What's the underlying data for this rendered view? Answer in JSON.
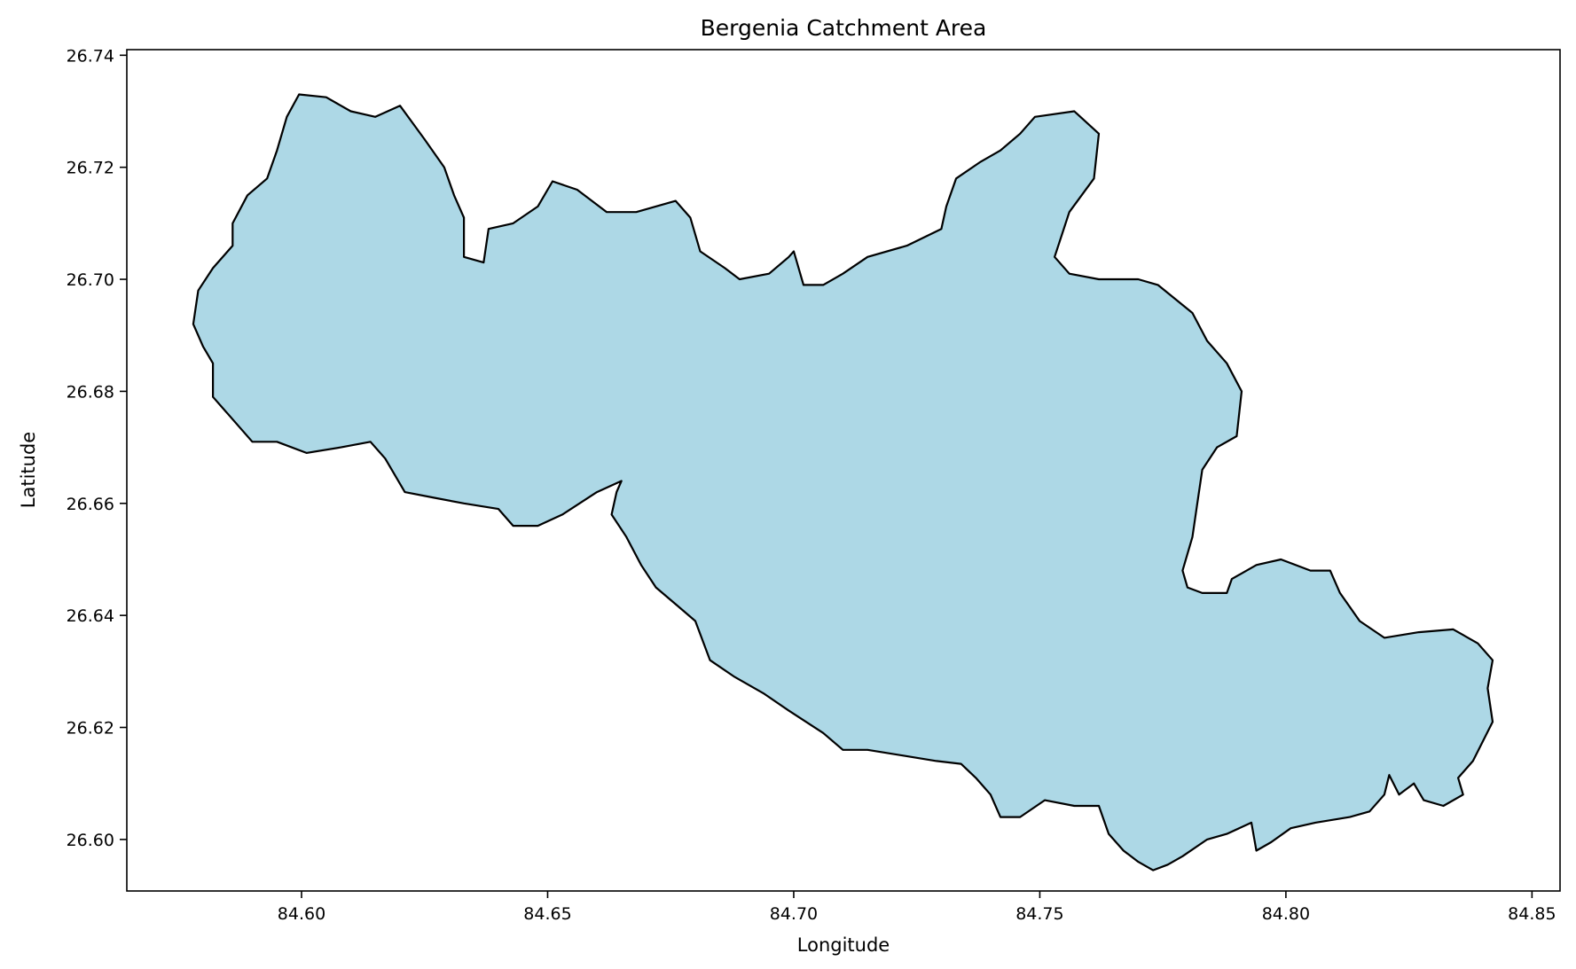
{
  "chart_data": {
    "type": "map",
    "title": "Bergenia Catchment Area",
    "xlabel": "Longitude",
    "ylabel": "Latitude",
    "xlim": [
      84.5645,
      84.8557
    ],
    "ylim": [
      26.5908,
      26.741
    ],
    "xticks": [
      84.6,
      84.65,
      84.7,
      84.75,
      84.8,
      84.85
    ],
    "yticks": [
      26.6,
      26.62,
      26.64,
      26.66,
      26.68,
      26.7,
      26.72,
      26.74
    ],
    "xtick_labels": [
      "84.60",
      "84.65",
      "84.70",
      "84.75",
      "84.80",
      "84.85"
    ],
    "ytick_labels": [
      "26.60",
      "26.62",
      "26.64",
      "26.66",
      "26.68",
      "26.70",
      "26.72",
      "26.74"
    ],
    "grid": false,
    "fill_color": "#add8e6",
    "edge_color": "#000000",
    "boundary": [
      [
        84.578,
        26.692
      ],
      [
        84.579,
        26.698
      ],
      [
        84.582,
        26.702
      ],
      [
        84.586,
        26.706
      ],
      [
        84.586,
        26.71
      ],
      [
        84.589,
        26.715
      ],
      [
        84.593,
        26.718
      ],
      [
        84.595,
        26.723
      ],
      [
        84.597,
        26.729
      ],
      [
        84.5995,
        26.733
      ],
      [
        84.605,
        26.7325
      ],
      [
        84.61,
        26.73
      ],
      [
        84.615,
        26.729
      ],
      [
        84.62,
        26.731
      ],
      [
        84.625,
        26.725
      ],
      [
        84.629,
        26.72
      ],
      [
        84.631,
        26.715
      ],
      [
        84.633,
        26.711
      ],
      [
        84.633,
        26.704
      ],
      [
        84.637,
        26.703
      ],
      [
        84.638,
        26.709
      ],
      [
        84.643,
        26.71
      ],
      [
        84.648,
        26.713
      ],
      [
        84.651,
        26.7175
      ],
      [
        84.656,
        26.716
      ],
      [
        84.662,
        26.712
      ],
      [
        84.668,
        26.712
      ],
      [
        84.676,
        26.714
      ],
      [
        84.679,
        26.711
      ],
      [
        84.681,
        26.705
      ],
      [
        84.686,
        26.702
      ],
      [
        84.689,
        26.7
      ],
      [
        84.695,
        26.701
      ],
      [
        84.699,
        26.704
      ],
      [
        84.7,
        26.705
      ],
      [
        84.702,
        26.699
      ],
      [
        84.706,
        26.699
      ],
      [
        84.71,
        26.701
      ],
      [
        84.715,
        26.704
      ],
      [
        84.723,
        26.706
      ],
      [
        84.73,
        26.709
      ],
      [
        84.731,
        26.713
      ],
      [
        84.733,
        26.718
      ],
      [
        84.738,
        26.721
      ],
      [
        84.742,
        26.723
      ],
      [
        84.746,
        26.726
      ],
      [
        84.749,
        26.729
      ],
      [
        84.757,
        26.73
      ],
      [
        84.762,
        26.726
      ],
      [
        84.761,
        26.718
      ],
      [
        84.756,
        26.712
      ],
      [
        84.753,
        26.704
      ],
      [
        84.756,
        26.701
      ],
      [
        84.762,
        26.7
      ],
      [
        84.77,
        26.7
      ],
      [
        84.774,
        26.699
      ],
      [
        84.781,
        26.694
      ],
      [
        84.784,
        26.689
      ],
      [
        84.788,
        26.685
      ],
      [
        84.791,
        26.68
      ],
      [
        84.79,
        26.672
      ],
      [
        84.786,
        26.67
      ],
      [
        84.783,
        26.666
      ],
      [
        84.782,
        26.66
      ],
      [
        84.781,
        26.654
      ],
      [
        84.779,
        26.648
      ],
      [
        84.78,
        26.645
      ],
      [
        84.783,
        26.644
      ],
      [
        84.788,
        26.644
      ],
      [
        84.789,
        26.6465
      ],
      [
        84.794,
        26.649
      ],
      [
        84.799,
        26.65
      ],
      [
        84.805,
        26.648
      ],
      [
        84.809,
        26.648
      ],
      [
        84.811,
        26.644
      ],
      [
        84.815,
        26.639
      ],
      [
        84.82,
        26.636
      ],
      [
        84.827,
        26.637
      ],
      [
        84.834,
        26.6375
      ],
      [
        84.839,
        26.635
      ],
      [
        84.842,
        26.632
      ],
      [
        84.841,
        26.627
      ],
      [
        84.842,
        26.621
      ],
      [
        84.838,
        26.614
      ],
      [
        84.835,
        26.611
      ],
      [
        84.836,
        26.608
      ],
      [
        84.832,
        26.606
      ],
      [
        84.828,
        26.607
      ],
      [
        84.826,
        26.61
      ],
      [
        84.823,
        26.608
      ],
      [
        84.821,
        26.6115
      ],
      [
        84.82,
        26.608
      ],
      [
        84.817,
        26.605
      ],
      [
        84.813,
        26.604
      ],
      [
        84.806,
        26.603
      ],
      [
        84.801,
        26.602
      ],
      [
        84.797,
        26.5995
      ],
      [
        84.794,
        26.598
      ],
      [
        84.793,
        26.603
      ],
      [
        84.788,
        26.601
      ],
      [
        84.784,
        26.6
      ],
      [
        84.779,
        26.597
      ],
      [
        84.776,
        26.5955
      ],
      [
        84.773,
        26.5945
      ],
      [
        84.77,
        26.596
      ],
      [
        84.767,
        26.598
      ],
      [
        84.764,
        26.601
      ],
      [
        84.762,
        26.606
      ],
      [
        84.757,
        26.606
      ],
      [
        84.751,
        26.607
      ],
      [
        84.746,
        26.604
      ],
      [
        84.742,
        26.604
      ],
      [
        84.74,
        26.608
      ],
      [
        84.737,
        26.611
      ],
      [
        84.734,
        26.6135
      ],
      [
        84.729,
        26.614
      ],
      [
        84.722,
        26.615
      ],
      [
        84.715,
        26.616
      ],
      [
        84.71,
        26.616
      ],
      [
        84.706,
        26.619
      ],
      [
        84.699,
        26.623
      ],
      [
        84.694,
        26.626
      ],
      [
        84.688,
        26.629
      ],
      [
        84.683,
        26.632
      ],
      [
        84.68,
        26.639
      ],
      [
        84.676,
        26.642
      ],
      [
        84.672,
        26.645
      ],
      [
        84.669,
        26.649
      ],
      [
        84.666,
        26.654
      ],
      [
        84.663,
        26.658
      ],
      [
        84.664,
        26.662
      ],
      [
        84.665,
        26.664
      ],
      [
        84.66,
        26.662
      ],
      [
        84.653,
        26.658
      ],
      [
        84.648,
        26.656
      ],
      [
        84.643,
        26.656
      ],
      [
        84.64,
        26.659
      ],
      [
        84.633,
        26.66
      ],
      [
        84.627,
        26.661
      ],
      [
        84.621,
        26.662
      ],
      [
        84.617,
        26.668
      ],
      [
        84.614,
        26.671
      ],
      [
        84.608,
        26.67
      ],
      [
        84.601,
        26.669
      ],
      [
        84.595,
        26.671
      ],
      [
        84.59,
        26.671
      ],
      [
        84.585,
        26.676
      ],
      [
        84.582,
        26.679
      ],
      [
        84.582,
        26.685
      ],
      [
        84.58,
        26.688
      ]
    ]
  }
}
